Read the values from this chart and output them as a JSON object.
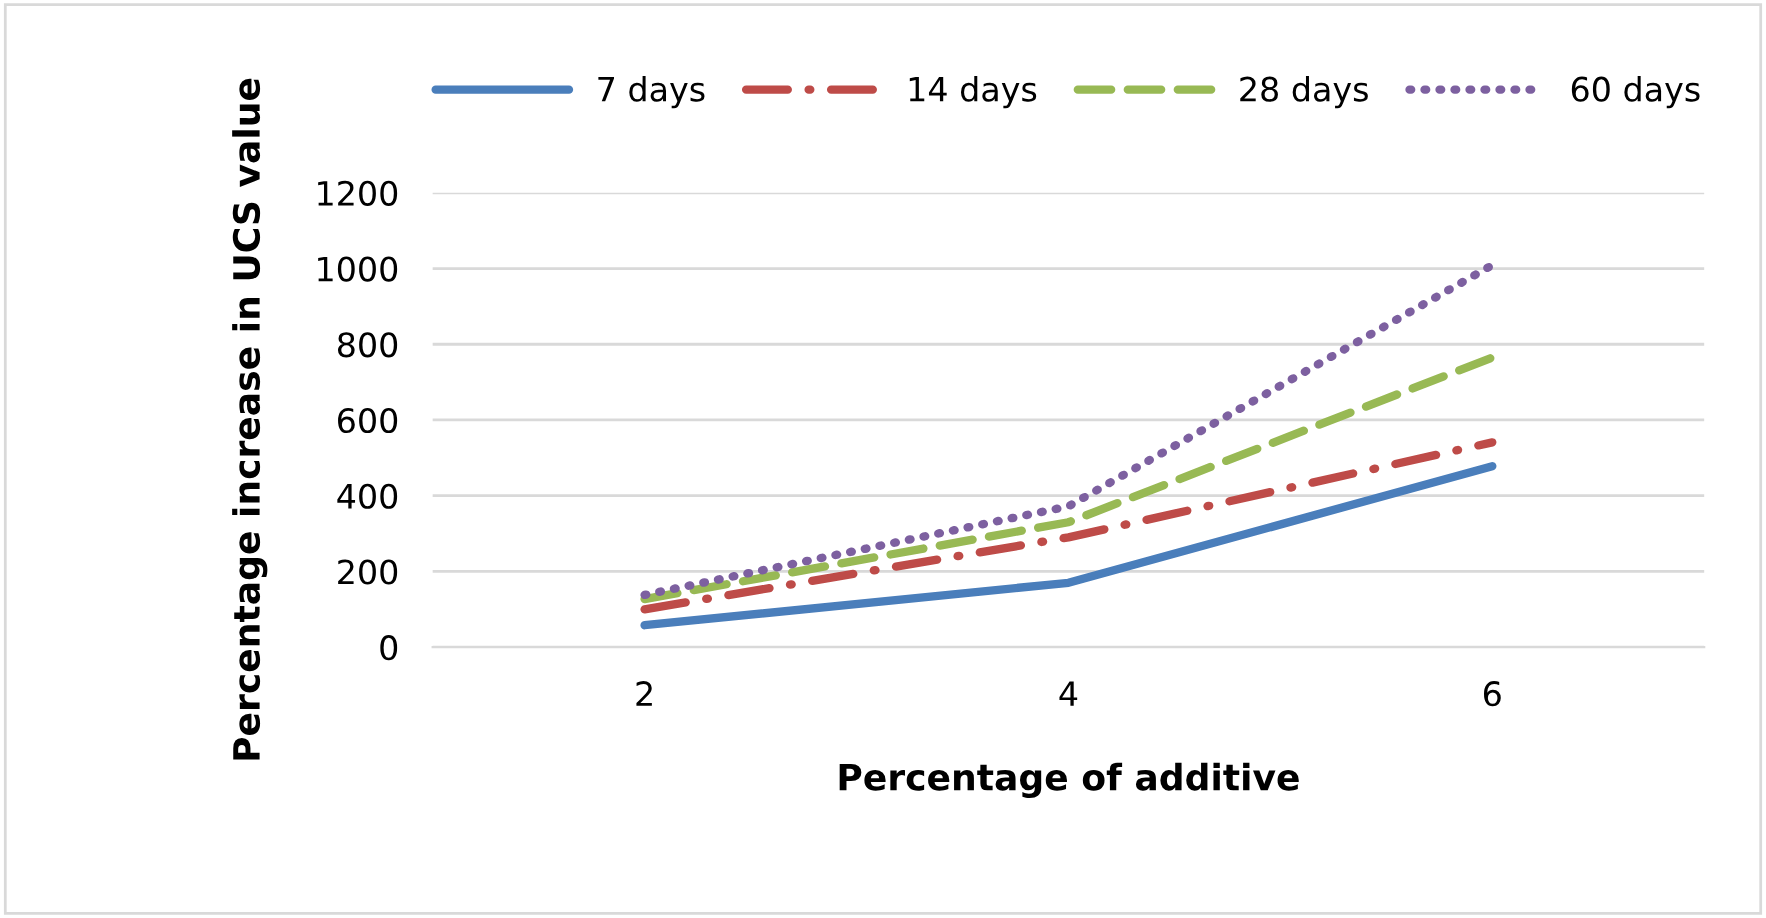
{
  "chart_data": {
    "type": "line",
    "xlabel": "Percentage of additive",
    "ylabel": "Percentage increase in UCS value",
    "categories": [
      "2",
      "4",
      "6"
    ],
    "series": [
      {
        "name": "7 days",
        "color": "#4a7ebb",
        "line_style": "solid",
        "values": [
          58,
          170,
          478
        ]
      },
      {
        "name": "14 days",
        "color": "#be4b48",
        "line_style": "dashdot",
        "values": [
          100,
          290,
          541
        ]
      },
      {
        "name": "28 days",
        "color": "#98b954",
        "line_style": "dashed",
        "values": [
          127,
          330,
          765
        ]
      },
      {
        "name": "60 days",
        "color": "#7d60a0",
        "line_style": "dotted",
        "values": [
          138,
          372,
          1009
        ]
      }
    ],
    "ylim": [
      0,
      1200
    ],
    "yticks": [
      0,
      200,
      400,
      600,
      800,
      1000,
      1200
    ],
    "grid": "y",
    "legend": "top",
    "marker": "none"
  }
}
